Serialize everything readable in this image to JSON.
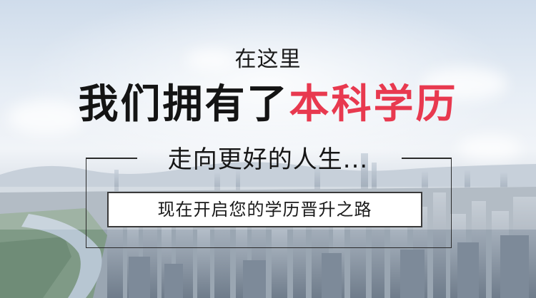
{
  "banner": {
    "line1": "在这里",
    "headline_part1": "我们拥有了",
    "headline_part2": "本科学历",
    "subline": "走向更好的人生...",
    "cta_text": "现在开启您的学历晋升之路"
  },
  "colors": {
    "accent": "#e8394f",
    "text_dark": "#141414",
    "frame": "#2a2a2a",
    "cta_bg": "#ffffff"
  }
}
